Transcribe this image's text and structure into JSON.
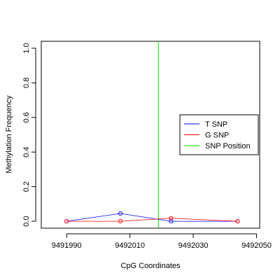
{
  "chart_data": {
    "type": "line",
    "title": "",
    "xlabel": "CpG Coordinates",
    "ylabel": "Methylation Frequency",
    "xlim": [
      9491982,
      9492051
    ],
    "ylim": [
      -0.04,
      1.04
    ],
    "x_ticks": [
      9491990,
      9492010,
      9492030,
      9492050
    ],
    "x_tick_labels": [
      "9491990",
      "9492010",
      "9492030",
      "9492050"
    ],
    "y_ticks": [
      0.0,
      0.2,
      0.4,
      0.6,
      0.8,
      1.0
    ],
    "y_tick_labels": [
      "0.0",
      "0.2",
      "0.4",
      "0.6",
      "0.8",
      "1.0"
    ],
    "grid": false,
    "legend_position": "right",
    "series": [
      {
        "name": "T SNP",
        "color": "#0000ff",
        "x": [
          9491990,
          9492007,
          9492023,
          9492044
        ],
        "y": [
          0.0,
          0.045,
          0.0,
          0.0
        ]
      },
      {
        "name": "G SNP",
        "color": "#ff0000",
        "x": [
          9491990,
          9492007,
          9492023,
          9492044
        ],
        "y": [
          0.0,
          0.0,
          0.018,
          0.0
        ]
      }
    ],
    "vline": {
      "name": "SNP Position",
      "color": "#00dd00",
      "x": 9492019
    }
  }
}
